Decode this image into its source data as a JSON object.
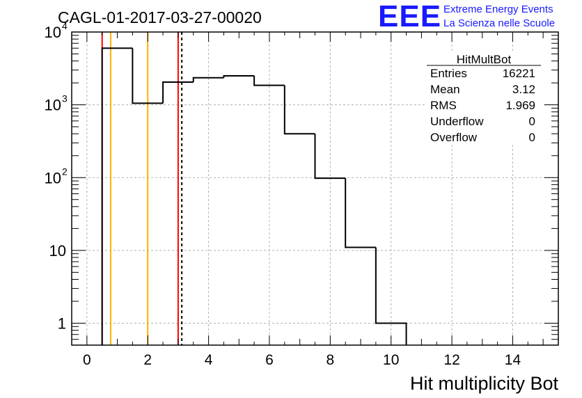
{
  "header": {
    "run_title": "CAGL-01-2017-03-27-00020",
    "logo_text": "EEE",
    "logo_line1": "Extreme Energy Events",
    "logo_line2": "La Scienza nelle Scuole"
  },
  "stats": {
    "title": "HitMultBot",
    "rows": [
      {
        "label": "Entries",
        "value": "16221"
      },
      {
        "label": "Mean",
        "value": "3.12"
      },
      {
        "label": "RMS",
        "value": "1.969"
      },
      {
        "label": "Underflow",
        "value": "0"
      },
      {
        "label": "Overflow",
        "value": "0"
      }
    ]
  },
  "colors": {
    "histogram": "#000000",
    "red_line": "#ff0000",
    "orange_line": "#ffb000",
    "grid": "#b0b0b0"
  },
  "chart_data": {
    "type": "bar",
    "style": "step-histogram",
    "xlabel": "Hit multiplicity Bot",
    "ylabel": "",
    "xlim": [
      -0.5,
      15.5
    ],
    "ylim": [
      0.5,
      10000
    ],
    "yscale": "log",
    "grid": true,
    "x_ticks": [
      0,
      2,
      4,
      6,
      8,
      10,
      12,
      14
    ],
    "x_tick_labels": [
      "0",
      "2",
      "4",
      "6",
      "8",
      "10",
      "12",
      "14"
    ],
    "y_ticks": [
      1,
      10,
      100,
      1000,
      10000
    ],
    "y_tick_labels": [
      {
        "base": "1",
        "exp": ""
      },
      {
        "base": "10",
        "exp": ""
      },
      {
        "base": "10",
        "exp": "2"
      },
      {
        "base": "10",
        "exp": "3"
      },
      {
        "base": "10",
        "exp": "4"
      }
    ],
    "bins": [
      {
        "low": 0.5,
        "high": 1.5,
        "value": 6000
      },
      {
        "low": 1.5,
        "high": 2.5,
        "value": 1050
      },
      {
        "low": 2.5,
        "high": 3.5,
        "value": 2050
      },
      {
        "low": 3.5,
        "high": 4.5,
        "value": 2350
      },
      {
        "low": 4.5,
        "high": 5.5,
        "value": 2500
      },
      {
        "low": 5.5,
        "high": 6.5,
        "value": 1850
      },
      {
        "low": 6.5,
        "high": 7.5,
        "value": 400
      },
      {
        "low": 7.5,
        "high": 8.5,
        "value": 98
      },
      {
        "low": 8.5,
        "high": 9.5,
        "value": 11
      },
      {
        "low": 9.5,
        "high": 10.5,
        "value": 1
      }
    ],
    "vertical_lines": [
      {
        "x": 0.5,
        "color": "red",
        "style": "solid"
      },
      {
        "x": 0.78,
        "color": "orange",
        "style": "solid"
      },
      {
        "x": 2.0,
        "color": "orange",
        "style": "solid"
      },
      {
        "x": 3.0,
        "color": "red",
        "style": "solid"
      },
      {
        "x": 3.12,
        "color": "black",
        "style": "dashed"
      }
    ]
  }
}
